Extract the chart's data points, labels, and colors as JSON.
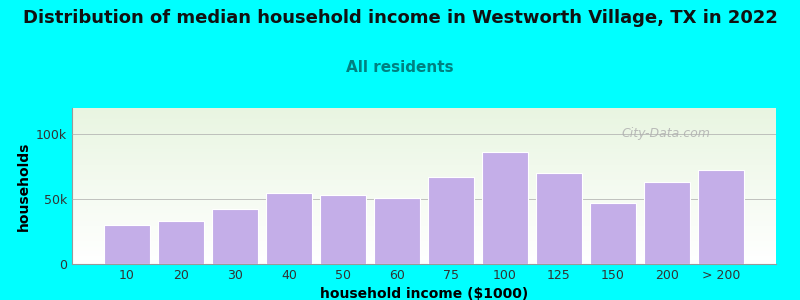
{
  "title": "Distribution of median household income in Westworth Village, TX in 2022",
  "subtitle": "All residents",
  "xlabel": "household income ($1000)",
  "ylabel": "households",
  "background_color": "#00FFFF",
  "bar_color": "#c4aee8",
  "bar_edge_color": "#ffffff",
  "categories": [
    "10",
    "20",
    "30",
    "40",
    "50",
    "60",
    "75",
    "100",
    "125",
    "150",
    "200",
    "> 200"
  ],
  "values": [
    30000,
    33000,
    42000,
    55000,
    53000,
    51000,
    67000,
    86000,
    70000,
    47000,
    63000,
    72000
  ],
  "ylim": [
    0,
    120000
  ],
  "yticks": [
    0,
    50000,
    100000
  ],
  "ytick_labels": [
    "0",
    "50k",
    "100k"
  ],
  "watermark": "City-Data.com",
  "title_fontsize": 13,
  "subtitle_fontsize": 11,
  "axis_label_fontsize": 10,
  "tick_fontsize": 9,
  "title_color": "#111111",
  "subtitle_color": "#008080",
  "watermark_color": "#b0b0b0"
}
